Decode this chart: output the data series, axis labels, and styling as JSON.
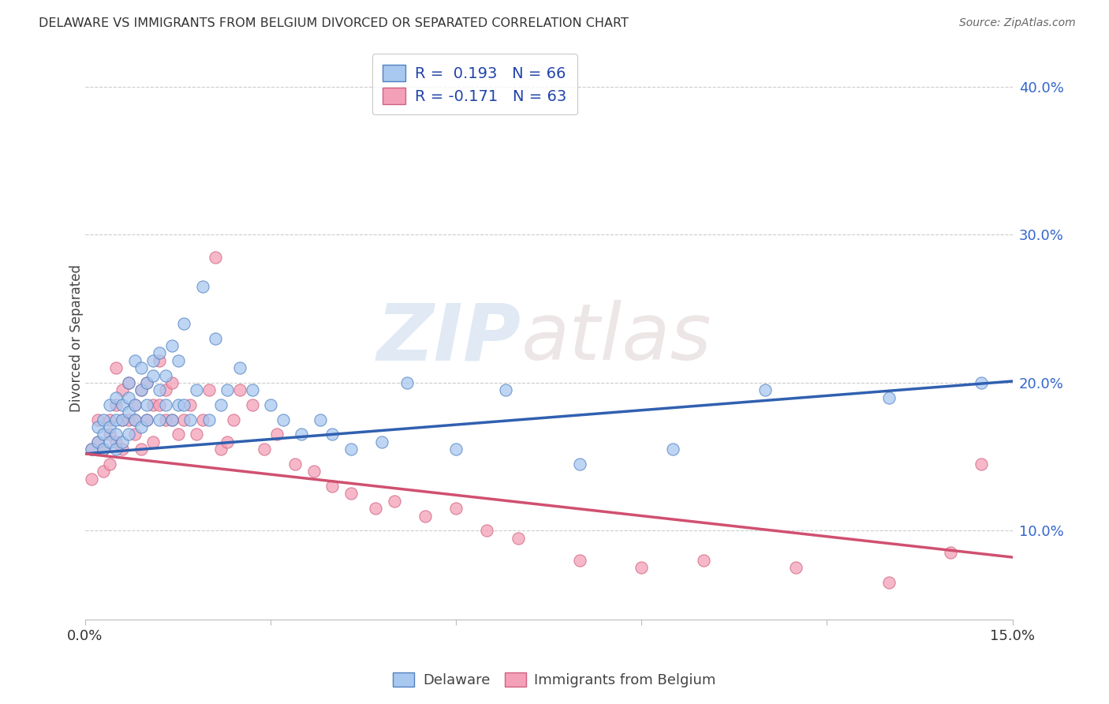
{
  "title": "DELAWARE VS IMMIGRANTS FROM BELGIUM DIVORCED OR SEPARATED CORRELATION CHART",
  "source": "Source: ZipAtlas.com",
  "ylabel": "Divorced or Separated",
  "xmin": 0.0,
  "xmax": 0.15,
  "ymin": 0.04,
  "ymax": 0.42,
  "yticks": [
    0.1,
    0.2,
    0.3,
    0.4
  ],
  "ytick_labels": [
    "10.0%",
    "20.0%",
    "30.0%",
    "40.0%"
  ],
  "xticks": [
    0.0,
    0.03,
    0.06,
    0.09,
    0.12,
    0.15
  ],
  "watermark_zip": "ZIP",
  "watermark_atlas": "atlas",
  "blue_R": 0.193,
  "blue_N": 66,
  "pink_R": -0.171,
  "pink_N": 63,
  "blue_color": "#A8C8F0",
  "pink_color": "#F4A0B8",
  "blue_edge_color": "#5080C0",
  "pink_edge_color": "#D06080",
  "blue_line_color": "#3060B0",
  "pink_line_color": "#D05070",
  "legend_label_blue": "Delaware",
  "legend_label_pink": "Immigrants from Belgium",
  "blue_scatter_x": [
    0.001,
    0.002,
    0.002,
    0.003,
    0.003,
    0.003,
    0.004,
    0.004,
    0.004,
    0.005,
    0.005,
    0.005,
    0.005,
    0.006,
    0.006,
    0.006,
    0.007,
    0.007,
    0.007,
    0.007,
    0.008,
    0.008,
    0.008,
    0.009,
    0.009,
    0.009,
    0.01,
    0.01,
    0.01,
    0.011,
    0.011,
    0.012,
    0.012,
    0.012,
    0.013,
    0.013,
    0.014,
    0.014,
    0.015,
    0.015,
    0.016,
    0.016,
    0.017,
    0.018,
    0.019,
    0.02,
    0.021,
    0.022,
    0.023,
    0.025,
    0.027,
    0.03,
    0.032,
    0.035,
    0.038,
    0.04,
    0.043,
    0.048,
    0.052,
    0.06,
    0.068,
    0.08,
    0.095,
    0.11,
    0.13,
    0.145
  ],
  "blue_scatter_y": [
    0.155,
    0.17,
    0.16,
    0.175,
    0.165,
    0.155,
    0.17,
    0.185,
    0.16,
    0.175,
    0.165,
    0.19,
    0.155,
    0.185,
    0.175,
    0.16,
    0.19,
    0.18,
    0.2,
    0.165,
    0.185,
    0.215,
    0.175,
    0.195,
    0.21,
    0.17,
    0.2,
    0.185,
    0.175,
    0.205,
    0.215,
    0.195,
    0.22,
    0.175,
    0.205,
    0.185,
    0.225,
    0.175,
    0.215,
    0.185,
    0.24,
    0.185,
    0.175,
    0.195,
    0.265,
    0.175,
    0.23,
    0.185,
    0.195,
    0.21,
    0.195,
    0.185,
    0.175,
    0.165,
    0.175,
    0.165,
    0.155,
    0.16,
    0.2,
    0.155,
    0.195,
    0.145,
    0.155,
    0.195,
    0.19,
    0.2
  ],
  "pink_scatter_x": [
    0.001,
    0.001,
    0.002,
    0.002,
    0.003,
    0.003,
    0.004,
    0.004,
    0.004,
    0.005,
    0.005,
    0.005,
    0.006,
    0.006,
    0.006,
    0.007,
    0.007,
    0.008,
    0.008,
    0.008,
    0.009,
    0.009,
    0.01,
    0.01,
    0.011,
    0.011,
    0.012,
    0.012,
    0.013,
    0.013,
    0.014,
    0.014,
    0.015,
    0.016,
    0.017,
    0.018,
    0.019,
    0.02,
    0.021,
    0.022,
    0.023,
    0.024,
    0.025,
    0.027,
    0.029,
    0.031,
    0.034,
    0.037,
    0.04,
    0.043,
    0.047,
    0.05,
    0.055,
    0.06,
    0.065,
    0.07,
    0.08,
    0.09,
    0.1,
    0.115,
    0.13,
    0.14,
    0.145
  ],
  "pink_scatter_y": [
    0.155,
    0.135,
    0.16,
    0.175,
    0.14,
    0.155,
    0.165,
    0.145,
    0.175,
    0.16,
    0.185,
    0.21,
    0.175,
    0.195,
    0.155,
    0.175,
    0.2,
    0.165,
    0.185,
    0.175,
    0.195,
    0.155,
    0.175,
    0.2,
    0.185,
    0.16,
    0.215,
    0.185,
    0.195,
    0.175,
    0.175,
    0.2,
    0.165,
    0.175,
    0.185,
    0.165,
    0.175,
    0.195,
    0.285,
    0.155,
    0.16,
    0.175,
    0.195,
    0.185,
    0.155,
    0.165,
    0.145,
    0.14,
    0.13,
    0.125,
    0.115,
    0.12,
    0.11,
    0.115,
    0.1,
    0.095,
    0.08,
    0.075,
    0.08,
    0.075,
    0.065,
    0.085,
    0.145
  ],
  "blue_line_x": [
    0.0,
    0.15
  ],
  "blue_line_y": [
    0.152,
    0.201
  ],
  "pink_line_x": [
    0.0,
    0.15
  ],
  "pink_line_y": [
    0.152,
    0.082
  ]
}
